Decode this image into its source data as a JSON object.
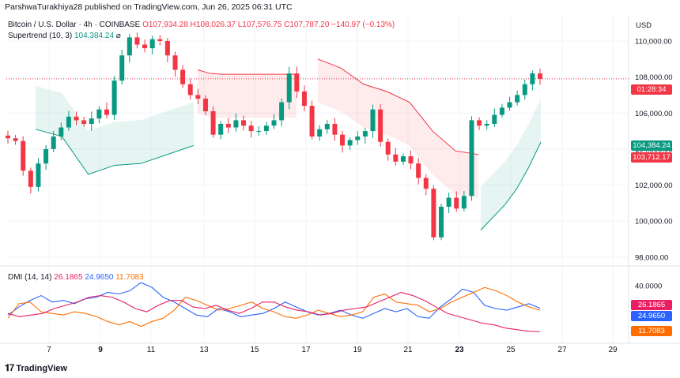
{
  "header": {
    "publisher": "ParshwaTurakhiya28 published on TradingView.com, Jun 26, 2025 06:31 UTC",
    "symbol": "Bitcoin / U.S. Dollar · 4h · COINBASE",
    "open": "O107,934.28",
    "high": "H108,026.37",
    "low": "L107,576.75",
    "close": "C107,787.20",
    "change": "−140.97 (−0.13%)",
    "supertrend_label": "Supertrend (10, 3)",
    "supertrend_value": "104,384.24",
    "supertrend_symbol": "⌀",
    "currency": "USD"
  },
  "dmi": {
    "label": "DMI (14, 14)",
    "plus_di": "26.1865",
    "minus_di": "24.9650",
    "adx": "11.7083"
  },
  "price_tags": {
    "countdown": "01:28:34",
    "supertrend": "104,384.24",
    "supertrend_up": "103,712.17",
    "dmi_plus": "26.1865",
    "dmi_minus": "24.9650",
    "dmi_adx": "11.7083"
  },
  "brand": "TradingView",
  "colors": {
    "up": "#089981",
    "down": "#f23645",
    "plus_di": "#2962ff",
    "minus_di": "#ff6d00",
    "adx": "#e91e63"
  },
  "chart_data": [
    {
      "type": "candlestick",
      "title": "",
      "x_ticks": [
        "7",
        "9",
        "11",
        "13",
        "15",
        "17",
        "19",
        "21",
        "23",
        "25",
        "27",
        "29"
      ],
      "y_ticks": [
        "110,000.00",
        "108,000.00",
        "106,000.00",
        "104,000.00",
        "102,000.00",
        "100,000.00",
        "98,000.00"
      ],
      "ylim": [
        97600,
        111400
      ],
      "close_series": [
        104600,
        104450,
        102800,
        101900,
        103200,
        104000,
        104700,
        105200,
        105800,
        105600,
        105400,
        105700,
        106200,
        105900,
        107800,
        109200,
        110200,
        109800,
        109600,
        110100,
        110000,
        109200,
        108400,
        107600,
        107000,
        106800,
        106100,
        104800,
        105400,
        105200,
        105600,
        105300,
        105000,
        105000,
        105300,
        105600,
        106600,
        108200,
        107200,
        106400,
        104700,
        105100,
        105400,
        104800,
        104200,
        104500,
        104700,
        105000,
        106200,
        104400,
        103700,
        103300,
        103600,
        103200,
        102400,
        101800,
        99100,
        100800,
        101300,
        100700,
        101400,
        105600,
        105300,
        105400,
        105900,
        106300,
        106600,
        107000,
        107600,
        108200,
        107900
      ],
      "supertrend": {
        "uptrend_1": [
          105100,
          104700,
          102600,
          103100,
          103200,
          103700,
          104200
        ],
        "downtrend_1": [
          108400,
          108200,
          108150,
          108150,
          108150,
          108150,
          108150,
          108150,
          108150
        ],
        "downtrend_2": [
          109000,
          108500,
          107600,
          107200,
          106600,
          105000,
          103900,
          103700
        ],
        "uptrend_2": [
          99500,
          100200,
          100900,
          101800,
          103000,
          104384.24
        ]
      }
    },
    {
      "type": "line",
      "title": "DMI (14, 14)",
      "y_ticks": [
        "40.0000"
      ],
      "series": [
        {
          "name": "+DI",
          "values": [
            22,
            27,
            31,
            34,
            30,
            31,
            29,
            32,
            33,
            36,
            35,
            37,
            42,
            39,
            33,
            30,
            26,
            22,
            21,
            26,
            24,
            21,
            22,
            23,
            26,
            30,
            27,
            24,
            22,
            23,
            25,
            22,
            20,
            23,
            26,
            24,
            26,
            21,
            20,
            27,
            32,
            38,
            36,
            28,
            26,
            25,
            27,
            29,
            26.19
          ]
        },
        {
          "name": "−DI",
          "values": [
            20,
            29,
            30,
            24,
            23,
            22,
            24,
            23,
            21,
            18,
            16,
            18,
            15,
            18,
            20,
            25,
            33,
            31,
            28,
            25,
            26,
            28,
            30,
            26,
            24,
            21,
            20,
            22,
            25,
            23,
            21,
            22,
            24,
            33,
            35,
            30,
            29,
            28,
            24,
            26,
            30,
            33,
            36,
            39,
            37,
            34,
            30,
            27,
            24.97
          ]
        },
        {
          "name": "ADX",
          "values": [
            23,
            21,
            22,
            23,
            26,
            28,
            30,
            33,
            34,
            33,
            30,
            26,
            24,
            28,
            31,
            31,
            27,
            26,
            28,
            25,
            23,
            26,
            30,
            30,
            27,
            25,
            24,
            22,
            23,
            25,
            26,
            27,
            30,
            33,
            36,
            34,
            31,
            27,
            23,
            21,
            19,
            17,
            16,
            14,
            13,
            12,
            11.71
          ]
        }
      ]
    }
  ]
}
